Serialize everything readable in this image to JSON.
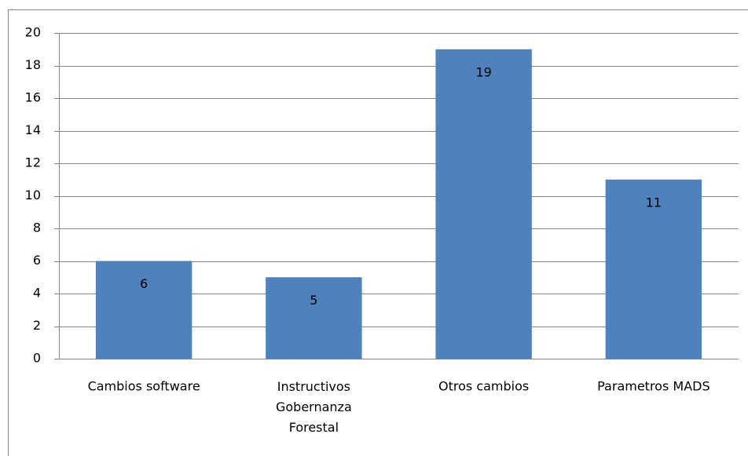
{
  "chart_data": {
    "type": "bar",
    "categories": [
      "Cambios software",
      "Instructivos\nGobernanza\nForestal",
      "Otros cambios",
      "Parametros MADS"
    ],
    "values": [
      6,
      5,
      19,
      11
    ],
    "color": "#4f81bd",
    "ylim": [
      0,
      20
    ],
    "yticks": [
      0,
      2,
      4,
      6,
      8,
      10,
      12,
      14,
      16,
      18,
      20
    ],
    "grid": true
  }
}
